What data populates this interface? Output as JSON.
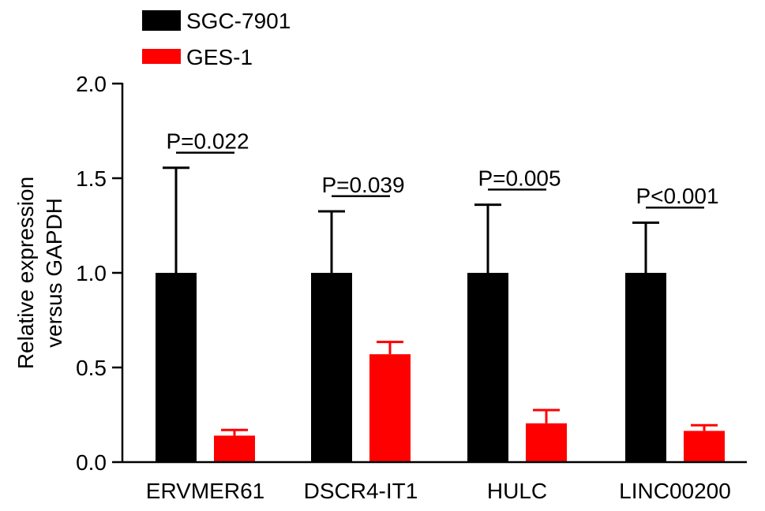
{
  "chart_data": {
    "type": "bar",
    "categories": [
      "ERVMER61",
      "DSCR4-IT1",
      "HULC",
      "LINC00200"
    ],
    "series": [
      {
        "name": "SGC-7901",
        "color": "#000000",
        "values": [
          1.0,
          1.0,
          1.0,
          1.0
        ],
        "error": [
          0.555,
          0.325,
          0.36,
          0.265
        ]
      },
      {
        "name": "GES-1",
        "color": "#ff0000",
        "values": [
          0.14,
          0.57,
          0.205,
          0.165
        ],
        "error": [
          0.03,
          0.065,
          0.07,
          0.03
        ]
      }
    ],
    "significance": [
      {
        "label": "P=0.022",
        "height": 1.635
      },
      {
        "label": "P=0.039",
        "height": 1.405
      },
      {
        "label": "P=0.005",
        "height": 1.44
      },
      {
        "label": "P<0.001",
        "height": 1.345
      }
    ],
    "ylabel": [
      "Relative expression",
      "versus GAPDH"
    ],
    "ylim": [
      0,
      2.0
    ],
    "yticks": [
      "0.0",
      "0.5",
      "1.0",
      "1.5",
      "2.0"
    ],
    "legend": {
      "position": "top-left"
    },
    "grid": false
  }
}
